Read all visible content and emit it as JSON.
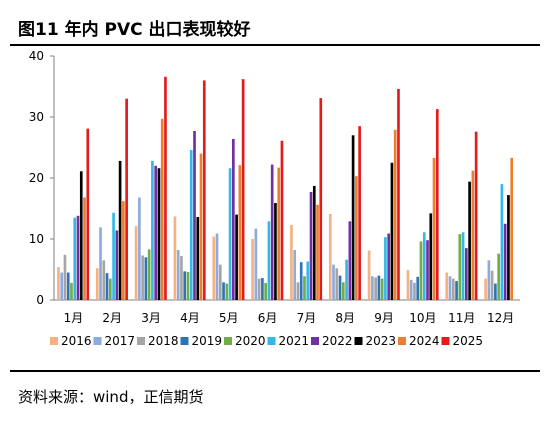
{
  "header": {
    "title": "图11 年内 PVC 出口表现较好"
  },
  "footer": {
    "source": "资料来源：wind，正信期货"
  },
  "chart_data": {
    "type": "bar",
    "title": "",
    "xlabel": "",
    "ylabel": "",
    "ylim": [
      0,
      40
    ],
    "yticks": [
      0,
      10,
      20,
      30,
      40
    ],
    "grid": false,
    "legend_position": "bottom",
    "categories": [
      "1月",
      "2月",
      "3月",
      "4月",
      "5月",
      "6月",
      "7月",
      "8月",
      "9月",
      "10月",
      "11月",
      "12月"
    ],
    "series": [
      {
        "name": "2016",
        "color": "#F4B183",
        "values": [
          5.4,
          5.2,
          12.1,
          13.7,
          10.4,
          10.0,
          12.3,
          14.1,
          8.1,
          4.9,
          4.5,
          3.5
        ]
      },
      {
        "name": "2017",
        "color": "#8FAADC",
        "values": [
          4.5,
          11.9,
          16.8,
          8.2,
          10.9,
          11.7,
          8.2,
          5.8,
          3.9,
          3.3,
          3.9,
          6.5
        ]
      },
      {
        "name": "2018",
        "color": "#A5A5A5",
        "values": [
          7.4,
          6.5,
          7.3,
          7.2,
          5.8,
          3.5,
          2.9,
          5.2,
          3.7,
          2.8,
          3.5,
          4.8
        ]
      },
      {
        "name": "2019",
        "color": "#2E75B6",
        "values": [
          4.5,
          4.4,
          7.0,
          4.7,
          2.9,
          3.6,
          6.2,
          4.0,
          4.0,
          3.8,
          3.1,
          2.7
        ]
      },
      {
        "name": "2020",
        "color": "#70AD47",
        "values": [
          2.8,
          3.5,
          8.3,
          4.6,
          2.7,
          2.8,
          3.9,
          2.9,
          3.5,
          9.6,
          10.8,
          7.6
        ]
      },
      {
        "name": "2021",
        "color": "#33B8E8",
        "values": [
          13.5,
          14.3,
          22.8,
          24.6,
          21.6,
          12.9,
          6.3,
          6.6,
          10.3,
          11.1,
          11.1,
          19.0
        ]
      },
      {
        "name": "2022",
        "color": "#7030A0",
        "values": [
          13.8,
          11.4,
          22.0,
          27.7,
          26.4,
          22.2,
          17.7,
          12.9,
          10.9,
          9.8,
          8.5,
          12.5
        ]
      },
      {
        "name": "2023",
        "color": "#000000",
        "values": [
          21.1,
          22.8,
          21.6,
          13.6,
          14.0,
          15.9,
          18.7,
          27.0,
          22.5,
          14.2,
          19.4,
          17.2
        ]
      },
      {
        "name": "2024",
        "color": "#ED7D31",
        "values": [
          16.8,
          16.2,
          29.7,
          24.0,
          22.1,
          21.7,
          15.6,
          20.3,
          27.9,
          23.3,
          21.2,
          23.3
        ]
      },
      {
        "name": "2025",
        "color": "#E41B1B",
        "values": [
          28.1,
          33.0,
          36.6,
          36.0,
          36.2,
          26.1,
          33.1,
          28.5,
          34.6,
          31.3,
          27.6,
          null
        ]
      }
    ]
  }
}
